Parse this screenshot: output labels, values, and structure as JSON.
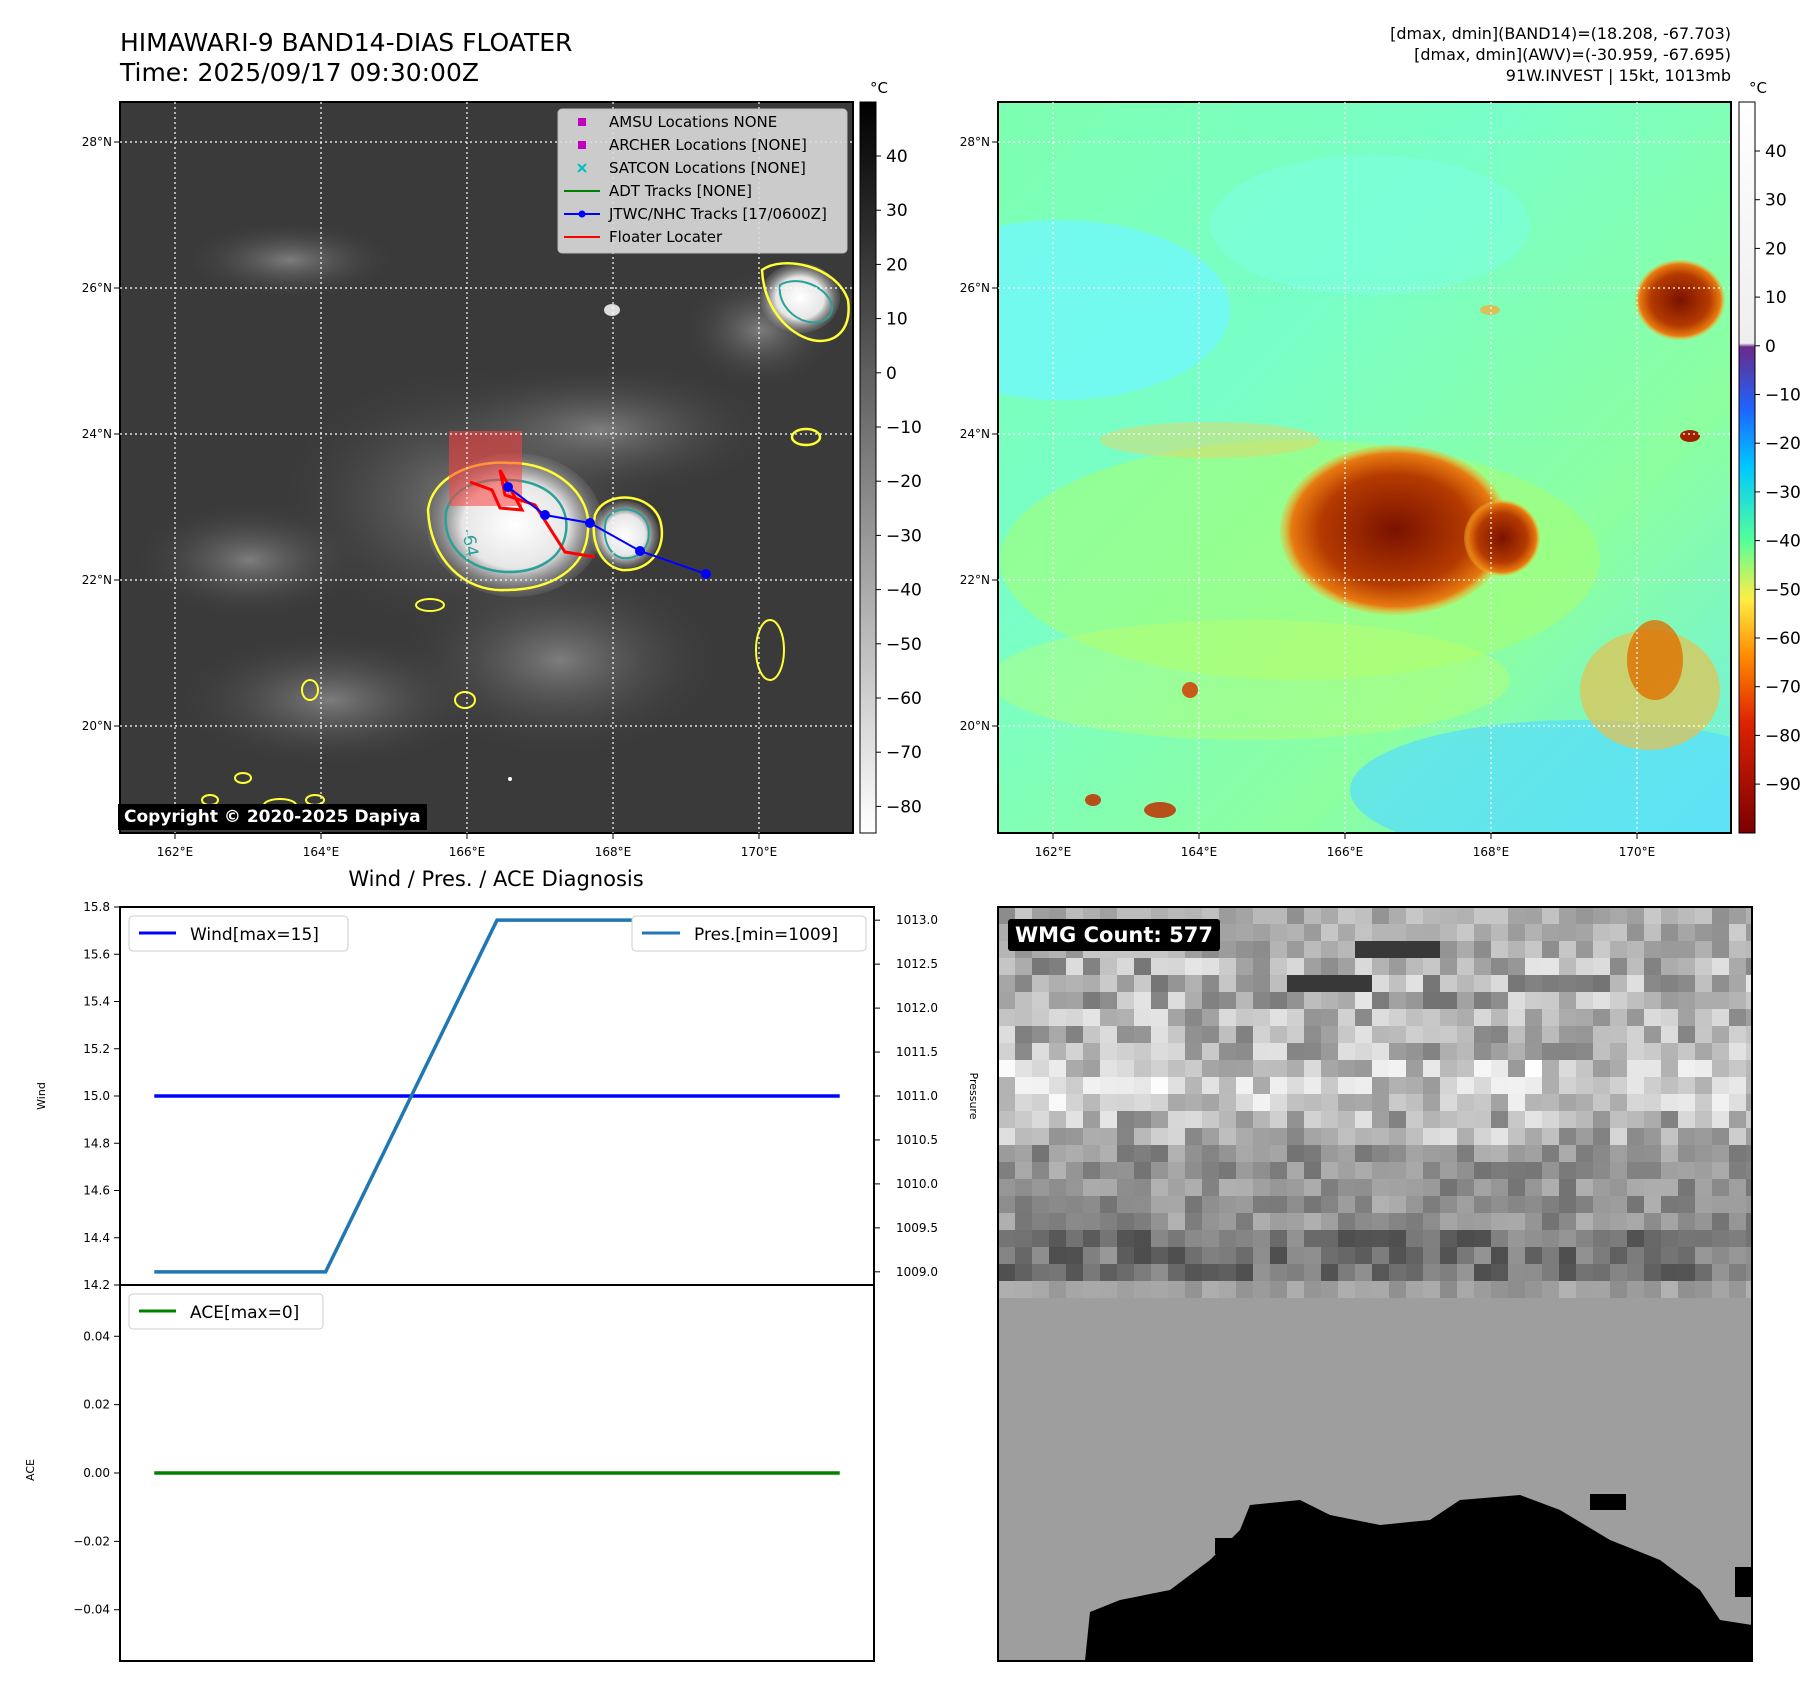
{
  "header": {
    "title_line1": "HIMAWARI-9 BAND14-DIAS FLOATER",
    "title_line2": "Time: 2025/09/17 09:30:00Z",
    "info_line1": "[dmax, dmin](BAND14)=(18.208, -67.703)",
    "info_line2": "[dmax, dmin](AWV)=(-30.959, -67.695)",
    "info_line3": "91W.INVEST | 15kt, 1013mb"
  },
  "map_axes": {
    "x_ticks": [
      "162°E",
      "164°E",
      "166°E",
      "168°E",
      "170°E"
    ],
    "y_ticks": [
      "28°N",
      "26°N",
      "24°N",
      "22°N",
      "20°N"
    ]
  },
  "ir_panel": {
    "colorbar_unit": "°C",
    "colorbar_ticks": [
      "40",
      "30",
      "20",
      "10",
      "0",
      "−10",
      "−20",
      "−30",
      "−40",
      "−50",
      "−60",
      "−70",
      "−80"
    ],
    "contour_label": "-64",
    "copyright": "Copyright © 2020-2025 Dapiya",
    "legend": [
      {
        "label": "AMSU Locations NONE",
        "marker": "square",
        "color": "#bf00bf"
      },
      {
        "label": "ARCHER Locations [NONE]",
        "marker": "square",
        "color": "#bf00bf"
      },
      {
        "label": "SATCON Locations [NONE]",
        "marker": "x",
        "color": "#00bfbf"
      },
      {
        "label": "ADT Tracks [NONE]",
        "marker": "line",
        "color": "#008000"
      },
      {
        "label": "JTWC/NHC Tracks [17/0600Z]",
        "marker": "line-dot",
        "color": "#0000ff"
      },
      {
        "label": "Floater Locater",
        "marker": "line",
        "color": "#ff0000"
      }
    ]
  },
  "color_panel": {
    "colorbar_unit": "°C",
    "colorbar_ticks": [
      "40",
      "30",
      "20",
      "10",
      "0",
      "−10",
      "−20",
      "−30",
      "−40",
      "−50",
      "−60",
      "−70",
      "−80",
      "−90"
    ]
  },
  "wmg_panel": {
    "count_label": "WMG Count: 577"
  },
  "chart_data": [
    {
      "type": "line",
      "title": "Wind / Pres. / ACE Diagnosis",
      "ylabel": "Wind",
      "ylabel_right": "Pressure",
      "ylim": [
        14.2,
        15.8
      ],
      "ylim_right": [
        1008.85,
        1013.15
      ],
      "y_ticks": [
        "15.8",
        "15.6",
        "15.4",
        "15.2",
        "15.0",
        "14.8",
        "14.6",
        "14.4",
        "14.2"
      ],
      "y_ticks_right": [
        "1013.0",
        "1012.5",
        "1012.0",
        "1011.5",
        "1011.0",
        "1010.5",
        "1010.0",
        "1009.5",
        "1009.0"
      ],
      "x": [
        0,
        1,
        2,
        3,
        4
      ],
      "series": [
        {
          "name": "Wind[max=15]",
          "axis": "left",
          "color": "#0000ff",
          "values": [
            15,
            15,
            15,
            15,
            15
          ]
        },
        {
          "name": "Pres.[min=1009]",
          "axis": "right",
          "color": "#1f77b4",
          "values": [
            1009,
            1009,
            1013,
            1013,
            1013
          ]
        }
      ],
      "legend_left": "top-left",
      "legend_right": "top-right"
    },
    {
      "type": "line",
      "ylabel": "ACE",
      "ylim": [
        -0.055,
        0.055
      ],
      "y_ticks": [
        "0.04",
        "0.02",
        "0.00",
        "−0.02",
        "−0.04"
      ],
      "x": [
        0,
        1,
        2,
        3,
        4
      ],
      "series": [
        {
          "name": "ACE[max=0]",
          "color": "#008000",
          "values": [
            0,
            0,
            0,
            0,
            0
          ]
        }
      ],
      "legend": "top-left"
    }
  ],
  "colors": {
    "ir_background": "#3a3a3a",
    "track_red": "#ff0000",
    "track_blue": "#0000ff",
    "contour_yellow": "#ffff33",
    "contour_teal": "#2aa198"
  }
}
